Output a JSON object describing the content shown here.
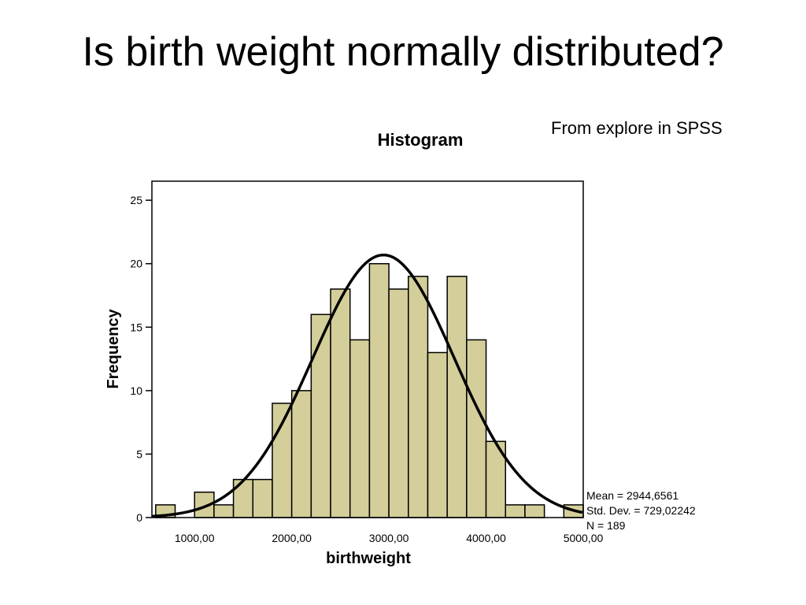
{
  "slide": {
    "title": "Is birth weight normally distributed?",
    "source_note": "From explore in SPSS"
  },
  "colors": {
    "bar_fill": "#d4cf9a",
    "bar_stroke": "#000000",
    "curve": "#000000",
    "frame": "#000000"
  },
  "chart_data": {
    "type": "bar",
    "subtype": "histogram",
    "title": "Histogram",
    "xlabel": "birthweight",
    "ylabel": "Frequency",
    "xlim": [
      561,
      5000
    ],
    "ylim": [
      0,
      26.5
    ],
    "x_ticks": [
      1000,
      2000,
      3000,
      4000,
      5000
    ],
    "x_tick_labels": [
      "1000,00",
      "2000,00",
      "3000,00",
      "4000,00",
      "5000,00"
    ],
    "y_ticks": [
      0,
      5,
      10,
      15,
      20,
      25
    ],
    "y_tick_labels": [
      "0",
      "5",
      "10",
      "15",
      "20",
      "25"
    ],
    "bin_width": 200,
    "bins": [
      {
        "start": 600,
        "end": 800,
        "count": 1
      },
      {
        "start": 800,
        "end": 1000,
        "count": 0
      },
      {
        "start": 1000,
        "end": 1200,
        "count": 2
      },
      {
        "start": 1200,
        "end": 1400,
        "count": 1
      },
      {
        "start": 1400,
        "end": 1600,
        "count": 3
      },
      {
        "start": 1600,
        "end": 1800,
        "count": 3
      },
      {
        "start": 1800,
        "end": 2000,
        "count": 9
      },
      {
        "start": 2000,
        "end": 2200,
        "count": 10
      },
      {
        "start": 2200,
        "end": 2400,
        "count": 16
      },
      {
        "start": 2400,
        "end": 2600,
        "count": 18
      },
      {
        "start": 2600,
        "end": 2800,
        "count": 14
      },
      {
        "start": 2800,
        "end": 3000,
        "count": 20
      },
      {
        "start": 3000,
        "end": 3200,
        "count": 18
      },
      {
        "start": 3200,
        "end": 3400,
        "count": 19
      },
      {
        "start": 3400,
        "end": 3600,
        "count": 13
      },
      {
        "start": 3600,
        "end": 3800,
        "count": 19
      },
      {
        "start": 3800,
        "end": 4000,
        "count": 14
      },
      {
        "start": 4000,
        "end": 4200,
        "count": 6
      },
      {
        "start": 4200,
        "end": 4400,
        "count": 1
      },
      {
        "start": 4400,
        "end": 4600,
        "count": 1
      },
      {
        "start": 4600,
        "end": 4800,
        "count": 0
      },
      {
        "start": 4800,
        "end": 5000,
        "count": 1
      }
    ],
    "normal_curve": {
      "mean": 2944.6561,
      "sd": 729.02242,
      "n": 189
    },
    "stats": {
      "mean": "Mean = 2944,6561",
      "sd": "Std. Dev. = 729,02242",
      "n": "N = 189"
    },
    "grid": false,
    "legend": "none"
  }
}
